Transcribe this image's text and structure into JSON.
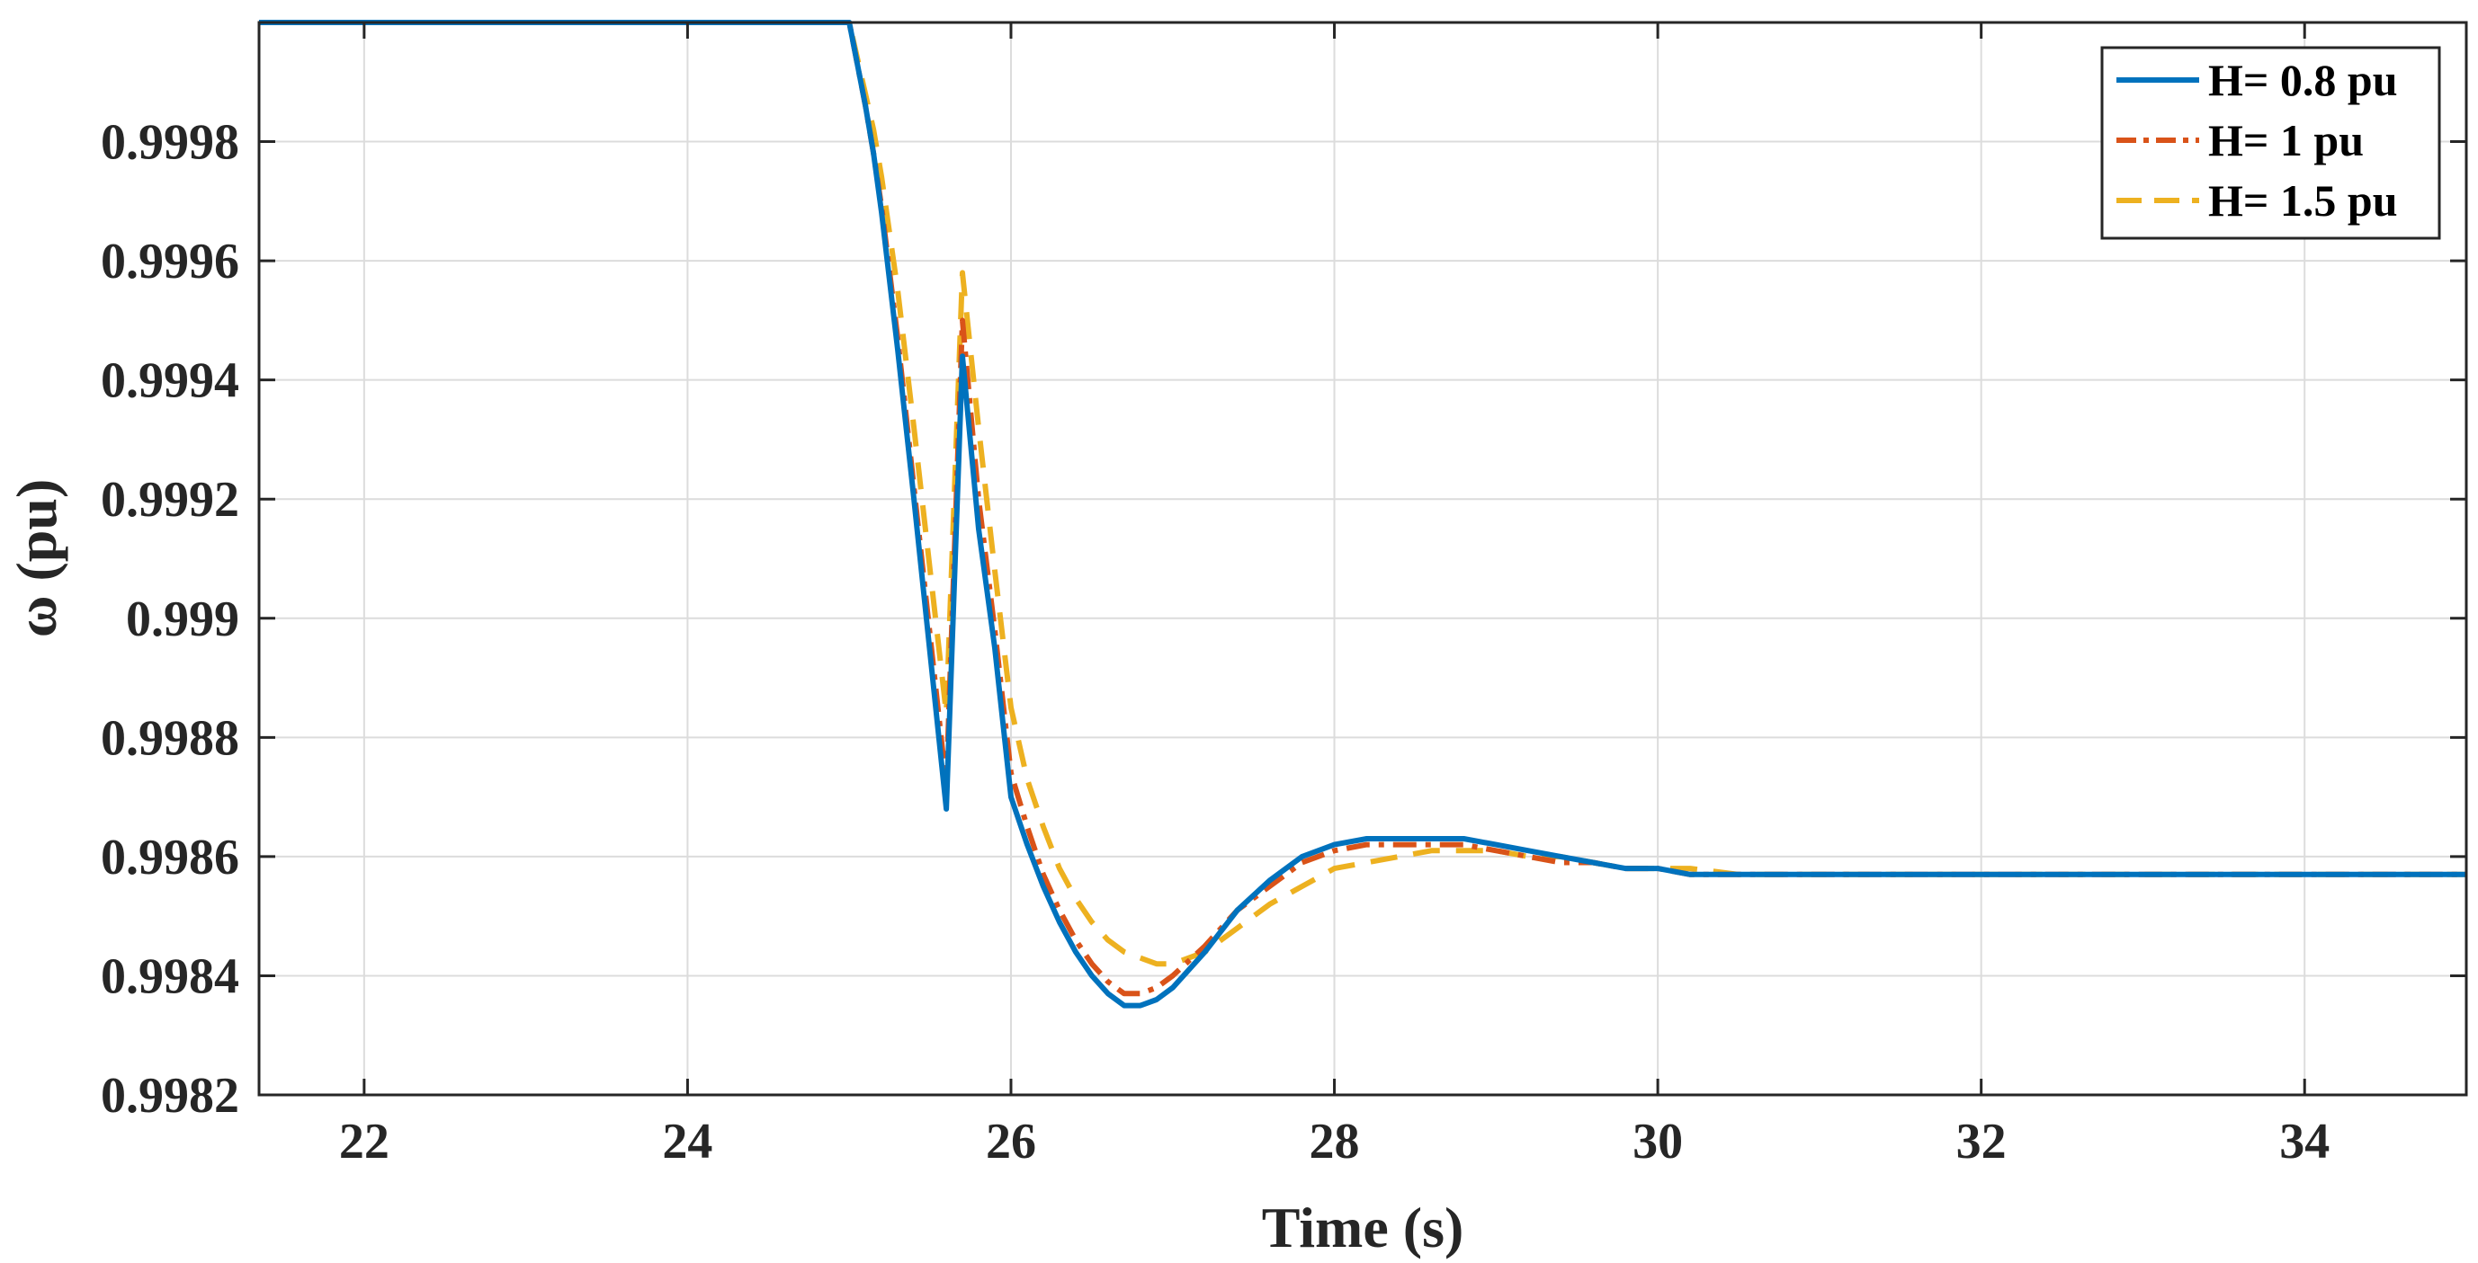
{
  "chart_data": {
    "type": "line",
    "xlabel": "Time (s)",
    "ylabel": "ω (pu)",
    "xlim": [
      21.35,
      35
    ],
    "ylim": [
      0.9982,
      1.0
    ],
    "xticks": [
      22,
      24,
      26,
      28,
      30,
      32,
      34
    ],
    "xtick_labels": [
      "22",
      "24",
      "26",
      "28",
      "30",
      "32",
      "34"
    ],
    "yticks": [
      0.9982,
      0.9984,
      0.9986,
      0.9988,
      0.999,
      0.9992,
      0.9994,
      0.9996,
      0.9998
    ],
    "ytick_labels": [
      "0.9982",
      "0.9984",
      "0.9986",
      "0.9988",
      "0.999",
      "0.9992",
      "0.9994",
      "0.9996",
      "0.9998"
    ],
    "grid": true,
    "legend_position": "top-right",
    "series": [
      {
        "name": "H= 0.8 pu",
        "color": "#0072BD",
        "style": "solid",
        "x": [
          21.35,
          25.0,
          25.05,
          25.1,
          25.15,
          25.2,
          25.3,
          25.4,
          25.5,
          25.6,
          25.7,
          25.8,
          25.9,
          26.0,
          26.1,
          26.2,
          26.3,
          26.4,
          26.5,
          26.6,
          26.7,
          26.8,
          26.9,
          27.0,
          27.2,
          27.4,
          27.6,
          27.8,
          28.0,
          28.2,
          28.4,
          28.6,
          28.8,
          29.0,
          29.2,
          29.4,
          29.6,
          29.8,
          30.0,
          30.2,
          30.5,
          30.8,
          31.2,
          31.6,
          32.0,
          33.0,
          34.0,
          35.0
        ],
        "y": [
          1.0,
          1.0,
          0.99993,
          0.99986,
          0.99978,
          0.99968,
          0.99945,
          0.9992,
          0.99894,
          0.99868,
          0.99944,
          0.99915,
          0.99895,
          0.9987,
          0.99862,
          0.99855,
          0.99849,
          0.99844,
          0.9984,
          0.99837,
          0.99835,
          0.99835,
          0.99836,
          0.99838,
          0.99844,
          0.99851,
          0.99856,
          0.9986,
          0.99862,
          0.99863,
          0.99863,
          0.99863,
          0.99863,
          0.99862,
          0.99861,
          0.9986,
          0.99859,
          0.99858,
          0.99858,
          0.99857,
          0.99857,
          0.99857,
          0.99857,
          0.99857,
          0.99857,
          0.99857,
          0.99857,
          0.99857
        ]
      },
      {
        "name": "H= 1 pu",
        "color": "#D95319",
        "style": "dashdot",
        "x": [
          21.35,
          25.0,
          25.05,
          25.1,
          25.15,
          25.2,
          25.3,
          25.4,
          25.5,
          25.6,
          25.7,
          25.8,
          25.9,
          26.0,
          26.1,
          26.2,
          26.3,
          26.4,
          26.5,
          26.6,
          26.7,
          26.8,
          26.9,
          27.0,
          27.2,
          27.4,
          27.6,
          27.8,
          28.0,
          28.2,
          28.4,
          28.6,
          28.8,
          29.0,
          29.2,
          29.4,
          29.6,
          29.8,
          30.0,
          30.2,
          30.5,
          30.8,
          31.2,
          31.6,
          32.0,
          33.0,
          34.0,
          35.0
        ],
        "y": [
          1.0,
          1.0,
          0.99993,
          0.99986,
          0.99978,
          0.99969,
          0.99947,
          0.99922,
          0.99897,
          0.99872,
          0.9995,
          0.9992,
          0.99898,
          0.99874,
          0.99865,
          0.99857,
          0.99851,
          0.99846,
          0.99842,
          0.99839,
          0.99837,
          0.99837,
          0.99838,
          0.9984,
          0.99845,
          0.99851,
          0.99855,
          0.99859,
          0.99861,
          0.99862,
          0.99862,
          0.99862,
          0.99862,
          0.99861,
          0.9986,
          0.99859,
          0.99859,
          0.99858,
          0.99858,
          0.99857,
          0.99857,
          0.99857,
          0.99857,
          0.99857,
          0.99857,
          0.99857,
          0.99857,
          0.99857
        ]
      },
      {
        "name": "H= 1.5 pu",
        "color": "#EDB120",
        "style": "dashed",
        "x": [
          21.35,
          25.0,
          25.05,
          25.1,
          25.15,
          25.2,
          25.3,
          25.4,
          25.5,
          25.6,
          25.7,
          25.8,
          25.9,
          26.0,
          26.1,
          26.2,
          26.3,
          26.4,
          26.5,
          26.6,
          26.7,
          26.8,
          26.9,
          27.0,
          27.2,
          27.4,
          27.6,
          27.8,
          28.0,
          28.2,
          28.4,
          28.6,
          28.8,
          29.0,
          29.2,
          29.4,
          29.6,
          29.8,
          30.0,
          30.2,
          30.5,
          30.8,
          31.2,
          31.6,
          32.0,
          33.0,
          34.0,
          35.0
        ],
        "y": [
          1.0,
          1.0,
          0.99994,
          0.99988,
          0.99982,
          0.99974,
          0.99955,
          0.99932,
          0.99908,
          0.99884,
          0.99958,
          0.99932,
          0.99908,
          0.99885,
          0.99873,
          0.99865,
          0.99858,
          0.99853,
          0.99849,
          0.99846,
          0.99844,
          0.99843,
          0.99842,
          0.99842,
          0.99844,
          0.99848,
          0.99852,
          0.99855,
          0.99858,
          0.99859,
          0.9986,
          0.99861,
          0.99861,
          0.99861,
          0.9986,
          0.9986,
          0.99859,
          0.99858,
          0.99858,
          0.99858,
          0.99857,
          0.99857,
          0.99857,
          0.99857,
          0.99857,
          0.99857,
          0.99857,
          0.99857
        ]
      }
    ]
  }
}
